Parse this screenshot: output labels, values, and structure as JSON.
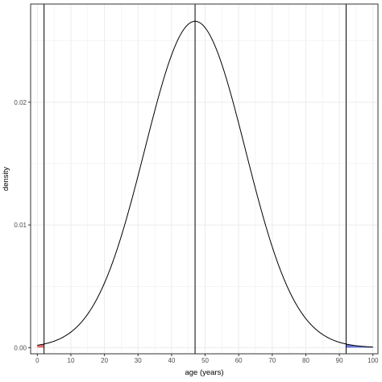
{
  "chart_data": {
    "type": "line",
    "xlabel": "age (years)",
    "ylabel": "density",
    "xlim": [
      -2,
      101.5
    ],
    "ylim": [
      -0.0005,
      0.028
    ],
    "x_ticks": [
      0,
      10,
      20,
      30,
      40,
      50,
      60,
      70,
      80,
      90,
      100
    ],
    "x_minor_ticks": [
      5,
      15,
      25,
      35,
      45,
      55,
      65,
      75,
      85,
      95
    ],
    "y_ticks": [
      0.0,
      0.01,
      0.02
    ],
    "y_tick_labels": [
      "0.00",
      "0.01",
      "0.02"
    ],
    "y_minor_ticks": [
      0.005,
      0.015,
      0.025
    ],
    "distribution": {
      "family": "normal",
      "mean": 47,
      "sd": 15
    },
    "curve_x_range": [
      0,
      100
    ],
    "vertical_lines": [
      2,
      47,
      92
    ],
    "shaded_regions": [
      {
        "from": 0,
        "to": 2,
        "color": "#e8564e"
      },
      {
        "from": 92,
        "to": 100,
        "color": "#4f5fd6"
      }
    ],
    "grid": true,
    "panel_border": true,
    "colors": {
      "curve": "#000000",
      "grid": "#ebebeb",
      "border": "#333333"
    }
  }
}
